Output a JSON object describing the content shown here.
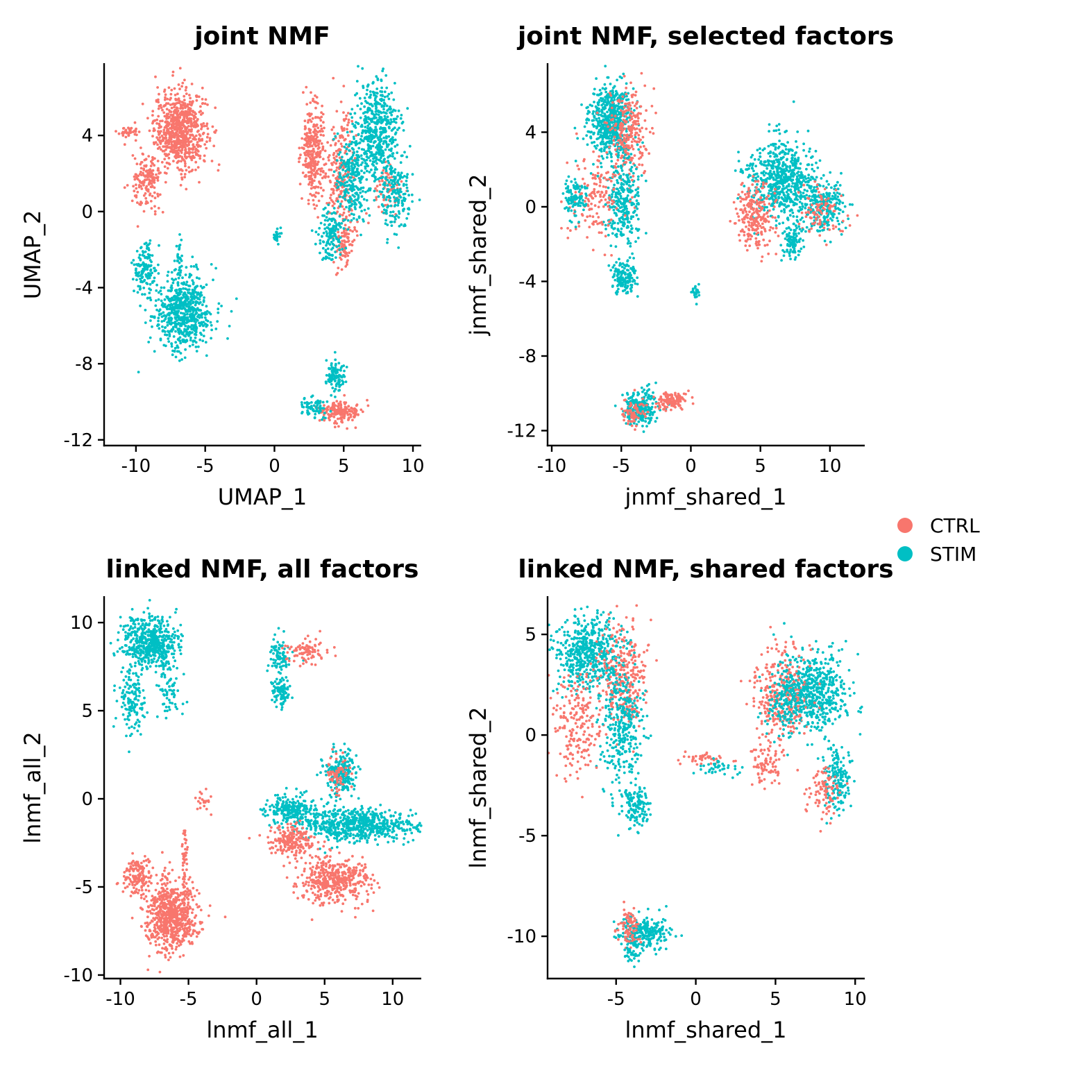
{
  "colors": {
    "CTRL": "#F8766D",
    "STIM": "#00BFC4"
  },
  "legend": {
    "placement": "right",
    "items": [
      {
        "name": "CTRL",
        "color": "#F8766D"
      },
      {
        "name": "STIM",
        "color": "#00BFC4"
      }
    ]
  },
  "chart_data": [
    {
      "type": "scatter",
      "title": "joint NMF",
      "xlabel": "UMAP_1",
      "ylabel": "UMAP_2",
      "xlim": [
        -12.3,
        10.6
      ],
      "ylim": [
        -12.3,
        7.8
      ],
      "xticks": [
        -10,
        -5,
        0,
        5,
        10
      ],
      "xticklabels": [
        "-10",
        "-5",
        "0",
        "5",
        "10"
      ],
      "yticks": [
        -12,
        -8,
        -4,
        0,
        4
      ],
      "yticklabels": [
        "-12",
        "-8",
        "-4",
        "0",
        "4"
      ],
      "grid": false,
      "clusters": [
        {
          "group": "CTRL",
          "cx": -6.8,
          "cy": 4.3,
          "sx": 1.1,
          "sy": 1.2,
          "n": 750
        },
        {
          "group": "CTRL",
          "cx": -9.2,
          "cy": 1.5,
          "sx": 0.6,
          "sy": 0.9,
          "n": 160
        },
        {
          "group": "CTRL",
          "cx": -10.5,
          "cy": 4.2,
          "sx": 0.6,
          "sy": 0.15,
          "n": 40
        },
        {
          "group": "CTRL",
          "cx": 2.8,
          "cy": 3.2,
          "sx": 0.5,
          "sy": 1.5,
          "n": 300
        },
        {
          "group": "CTRL",
          "cx": 4.8,
          "cy": 2.0,
          "sx": 0.6,
          "sy": 1.8,
          "n": 220
        },
        {
          "group": "CTRL",
          "cx": 8.3,
          "cy": 1.0,
          "sx": 0.6,
          "sy": 0.8,
          "n": 70
        },
        {
          "group": "CTRL",
          "cx": 5.1,
          "cy": -1.8,
          "sx": 0.4,
          "sy": 0.7,
          "n": 80
        },
        {
          "group": "CTRL",
          "cx": 4.8,
          "cy": -10.5,
          "sx": 0.9,
          "sy": 0.35,
          "n": 170
        },
        {
          "group": "STIM",
          "cx": -6.6,
          "cy": -5.3,
          "sx": 1.2,
          "sy": 1.2,
          "n": 650
        },
        {
          "group": "STIM",
          "cx": -9.4,
          "cy": -3.0,
          "sx": 0.5,
          "sy": 0.8,
          "n": 130
        },
        {
          "group": "STIM",
          "cx": -6.9,
          "cy": -2.5,
          "sx": 0.15,
          "sy": 0.8,
          "n": 30
        },
        {
          "group": "STIM",
          "cx": 7.4,
          "cy": 4.3,
          "sx": 0.9,
          "sy": 1.5,
          "n": 520
        },
        {
          "group": "STIM",
          "cx": 5.6,
          "cy": 1.8,
          "sx": 0.7,
          "sy": 1.3,
          "n": 260
        },
        {
          "group": "STIM",
          "cx": 8.8,
          "cy": 0.8,
          "sx": 0.6,
          "sy": 1.2,
          "n": 160
        },
        {
          "group": "STIM",
          "cx": 4.0,
          "cy": -1.3,
          "sx": 0.5,
          "sy": 0.8,
          "n": 140
        },
        {
          "group": "STIM",
          "cx": 0.2,
          "cy": -1.2,
          "sx": 0.2,
          "sy": 0.3,
          "n": 25
        },
        {
          "group": "STIM",
          "cx": 4.4,
          "cy": -8.6,
          "sx": 0.4,
          "sy": 0.5,
          "n": 110
        },
        {
          "group": "STIM",
          "cx": 2.7,
          "cy": -10.3,
          "sx": 0.6,
          "sy": 0.3,
          "n": 70
        }
      ]
    },
    {
      "type": "scatter",
      "title": "joint NMF, selected factors",
      "xlabel": "jnmf_shared_1",
      "ylabel": "jnmf_shared_2",
      "xlim": [
        -10.3,
        12.5
      ],
      "ylim": [
        -12.8,
        7.7
      ],
      "xticks": [
        -10,
        -5,
        0,
        5,
        10
      ],
      "xticklabels": [
        "-10",
        "-5",
        "0",
        "5",
        "10"
      ],
      "yticks": [
        -12,
        -8,
        -4,
        0,
        4
      ],
      "yticklabels": [
        "-12",
        "-8",
        "-4",
        "0",
        "4"
      ],
      "grid": false,
      "clusters": [
        {
          "group": "STIM",
          "cx": -5.8,
          "cy": 4.6,
          "sx": 0.9,
          "sy": 1.1,
          "n": 600
        },
        {
          "group": "CTRL",
          "cx": -4.5,
          "cy": 4.0,
          "sx": 0.8,
          "sy": 1.3,
          "n": 240
        },
        {
          "group": "STIM",
          "cx": -4.8,
          "cy": 0.2,
          "sx": 0.8,
          "sy": 1.5,
          "n": 300
        },
        {
          "group": "CTRL",
          "cx": -6.8,
          "cy": 0.5,
          "sx": 1.1,
          "sy": 1.5,
          "n": 150
        },
        {
          "group": "STIM",
          "cx": -8.4,
          "cy": 0.5,
          "sx": 0.5,
          "sy": 0.6,
          "n": 100
        },
        {
          "group": "STIM",
          "cx": -4.8,
          "cy": -3.8,
          "sx": 0.5,
          "sy": 0.5,
          "n": 150
        },
        {
          "group": "STIM",
          "cx": 0.3,
          "cy": -4.6,
          "sx": 0.15,
          "sy": 0.3,
          "n": 25
        },
        {
          "group": "STIM",
          "cx": 6.5,
          "cy": 1.5,
          "sx": 1.4,
          "sy": 1.2,
          "n": 650
        },
        {
          "group": "CTRL",
          "cx": 4.6,
          "cy": -0.5,
          "sx": 0.8,
          "sy": 1.1,
          "n": 230
        },
        {
          "group": "STIM",
          "cx": 9.6,
          "cy": 0.0,
          "sx": 0.9,
          "sy": 0.8,
          "n": 220
        },
        {
          "group": "CTRL",
          "cx": 9.4,
          "cy": -0.3,
          "sx": 0.9,
          "sy": 0.7,
          "n": 90
        },
        {
          "group": "STIM",
          "cx": 7.3,
          "cy": -1.8,
          "sx": 0.4,
          "sy": 0.6,
          "n": 100
        },
        {
          "group": "STIM",
          "cx": -3.6,
          "cy": -10.8,
          "sx": 0.7,
          "sy": 0.5,
          "n": 250
        },
        {
          "group": "CTRL",
          "cx": -1.4,
          "cy": -10.4,
          "sx": 0.7,
          "sy": 0.3,
          "n": 120
        },
        {
          "group": "CTRL",
          "cx": -4.1,
          "cy": -11.0,
          "sx": 0.5,
          "sy": 0.4,
          "n": 70
        }
      ]
    },
    {
      "type": "scatter",
      "title": "linked NMF, all factors",
      "xlabel": "lnmf_all_1",
      "ylabel": "lnmf_all_2",
      "xlim": [
        -11.2,
        12.1
      ],
      "ylim": [
        -10.2,
        11.5
      ],
      "xticks": [
        -10,
        -5,
        0,
        5,
        10
      ],
      "xticklabels": [
        "-10",
        "-5",
        "0",
        "5",
        "10"
      ],
      "yticks": [
        -10,
        -5,
        0,
        5,
        10
      ],
      "yticklabels": [
        "-10",
        "-5",
        "0",
        "5",
        "10"
      ],
      "grid": false,
      "clusters": [
        {
          "group": "STIM",
          "cx": -7.8,
          "cy": 8.8,
          "sx": 1.2,
          "sy": 0.9,
          "n": 550
        },
        {
          "group": "STIM",
          "cx": -9.3,
          "cy": 5.6,
          "sx": 0.6,
          "sy": 1.0,
          "n": 140
        },
        {
          "group": "STIM",
          "cx": -6.3,
          "cy": 6.0,
          "sx": 0.5,
          "sy": 0.9,
          "n": 60
        },
        {
          "group": "STIM",
          "cx": 1.7,
          "cy": 8.1,
          "sx": 0.5,
          "sy": 0.7,
          "n": 80
        },
        {
          "group": "STIM",
          "cx": 1.8,
          "cy": 6.1,
          "sx": 0.4,
          "sy": 0.5,
          "n": 90
        },
        {
          "group": "CTRL",
          "cx": 3.6,
          "cy": 8.4,
          "sx": 0.9,
          "sy": 0.4,
          "n": 90
        },
        {
          "group": "CTRL",
          "cx": -3.9,
          "cy": -0.1,
          "sx": 0.3,
          "sy": 0.3,
          "n": 20
        },
        {
          "group": "STIM",
          "cx": 7.5,
          "cy": -1.5,
          "sx": 2.4,
          "sy": 0.55,
          "n": 650
        },
        {
          "group": "STIM",
          "cx": 2.6,
          "cy": -0.6,
          "sx": 1.0,
          "sy": 0.5,
          "n": 230
        },
        {
          "group": "STIM",
          "cx": 6.2,
          "cy": 1.4,
          "sx": 0.7,
          "sy": 0.8,
          "n": 200
        },
        {
          "group": "CTRL",
          "cx": 5.9,
          "cy": 1.2,
          "sx": 0.5,
          "sy": 0.7,
          "n": 60
        },
        {
          "group": "CTRL",
          "cx": 2.6,
          "cy": -2.4,
          "sx": 1.0,
          "sy": 0.5,
          "n": 200
        },
        {
          "group": "CTRL",
          "cx": 5.8,
          "cy": -4.6,
          "sx": 1.5,
          "sy": 0.75,
          "n": 450
        },
        {
          "group": "CTRL",
          "cx": -6.2,
          "cy": -6.6,
          "sx": 1.1,
          "sy": 1.2,
          "n": 700
        },
        {
          "group": "CTRL",
          "cx": -8.8,
          "cy": -4.4,
          "sx": 0.6,
          "sy": 0.6,
          "n": 150
        },
        {
          "group": "CTRL",
          "cx": -5.3,
          "cy": -3.2,
          "sx": 0.12,
          "sy": 1.0,
          "n": 40
        }
      ]
    },
    {
      "type": "scatter",
      "title": "linked NMF, shared factors",
      "xlabel": "lnmf_shared_1",
      "ylabel": "lnmf_shared_2",
      "xlim": [
        -9.3,
        10.6
      ],
      "ylim": [
        -12.1,
        6.9
      ],
      "xticks": [
        -5,
        0,
        5,
        10
      ],
      "xticklabels": [
        "-5",
        "0",
        "5",
        "10"
      ],
      "yticks": [
        -10,
        -5,
        0,
        5
      ],
      "yticklabels": [
        "-10",
        "-5",
        "0",
        "5"
      ],
      "grid": false,
      "clusters": [
        {
          "group": "STIM",
          "cx": -6.7,
          "cy": 4.0,
          "sx": 1.2,
          "sy": 1.1,
          "n": 550
        },
        {
          "group": "CTRL",
          "cx": -4.6,
          "cy": 2.8,
          "sx": 0.9,
          "sy": 1.6,
          "n": 280
        },
        {
          "group": "STIM",
          "cx": -4.7,
          "cy": 0.4,
          "sx": 0.8,
          "sy": 1.7,
          "n": 330
        },
        {
          "group": "CTRL",
          "cx": -7.4,
          "cy": 0.5,
          "sx": 1.0,
          "sy": 1.6,
          "n": 200
        },
        {
          "group": "STIM",
          "cx": -3.7,
          "cy": -3.5,
          "sx": 0.5,
          "sy": 0.6,
          "n": 140
        },
        {
          "group": "CTRL",
          "cx": 0.5,
          "cy": -1.2,
          "sx": 1.0,
          "sy": 0.2,
          "n": 40
        },
        {
          "group": "STIM",
          "cx": 1.6,
          "cy": -1.6,
          "sx": 0.8,
          "sy": 0.25,
          "n": 40
        },
        {
          "group": "STIM",
          "cx": 7.6,
          "cy": 2.2,
          "sx": 1.1,
          "sy": 1.1,
          "n": 500
        },
        {
          "group": "CTRL",
          "cx": 5.4,
          "cy": 2.0,
          "sx": 1.0,
          "sy": 1.3,
          "n": 300
        },
        {
          "group": "STIM",
          "cx": 5.7,
          "cy": 1.8,
          "sx": 0.9,
          "sy": 1.2,
          "n": 200
        },
        {
          "group": "STIM",
          "cx": 8.8,
          "cy": -2.2,
          "sx": 0.5,
          "sy": 1.0,
          "n": 160
        },
        {
          "group": "CTRL",
          "cx": 8.0,
          "cy": -2.8,
          "sx": 0.6,
          "sy": 0.7,
          "n": 90
        },
        {
          "group": "CTRL",
          "cx": 4.5,
          "cy": -1.5,
          "sx": 0.7,
          "sy": 0.6,
          "n": 80
        },
        {
          "group": "STIM",
          "cx": -3.3,
          "cy": -9.8,
          "sx": 0.9,
          "sy": 0.45,
          "n": 260
        },
        {
          "group": "CTRL",
          "cx": -4.2,
          "cy": -9.5,
          "sx": 0.4,
          "sy": 0.6,
          "n": 80
        },
        {
          "group": "STIM",
          "cx": -4.0,
          "cy": -10.8,
          "sx": 0.3,
          "sy": 0.3,
          "n": 40
        }
      ]
    }
  ]
}
